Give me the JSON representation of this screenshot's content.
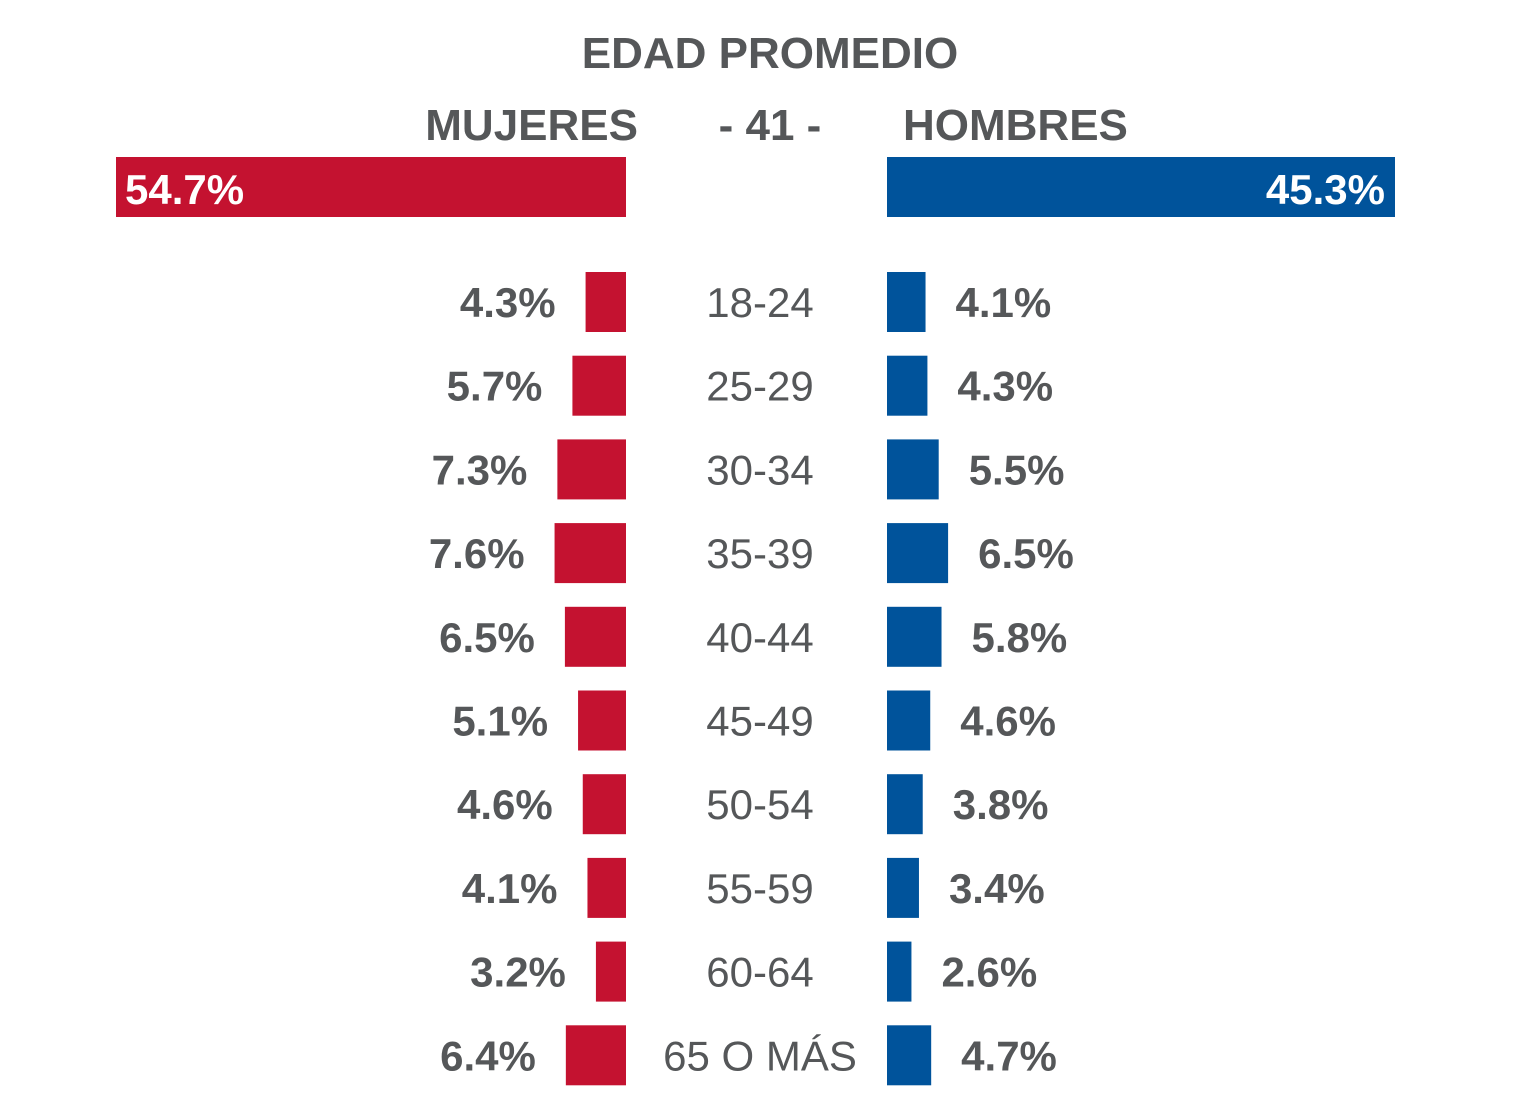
{
  "chart_data": {
    "type": "bar",
    "orientation": "horizontal-diverging",
    "title": "EDAD PROMEDIO",
    "average_label": "- 41 -",
    "totals": [
      {
        "name": "MUJERES",
        "value": 54.7,
        "label": "54.7%"
      },
      {
        "name": "HOMBRES",
        "value": 45.3,
        "label": "45.3%"
      }
    ],
    "categories": [
      "18-24",
      "25-29",
      "30-34",
      "35-39",
      "40-44",
      "45-49",
      "50-54",
      "55-59",
      "60-64",
      "65 O MÁS"
    ],
    "series": [
      {
        "name": "MUJERES",
        "side": "left",
        "values": [
          4.3,
          5.7,
          7.3,
          7.6,
          6.5,
          5.1,
          4.6,
          4.1,
          3.2,
          6.4
        ],
        "labels": [
          "4.3%",
          "5.7%",
          "7.3%",
          "7.6%",
          "6.5%",
          "5.1%",
          "4.6%",
          "4.1%",
          "3.2%",
          "6.4%"
        ]
      },
      {
        "name": "HOMBRES",
        "side": "right",
        "values": [
          4.1,
          4.3,
          5.5,
          6.5,
          5.8,
          4.6,
          3.8,
          3.4,
          2.6,
          4.7
        ],
        "labels": [
          "4.1%",
          "4.3%",
          "5.5%",
          "6.5%",
          "5.8%",
          "4.6%",
          "3.8%",
          "3.4%",
          "2.6%",
          "4.7%"
        ]
      }
    ],
    "legend": "none",
    "grid": false
  },
  "colors": {
    "mujeres": "#c41230",
    "hombres": "#00539b",
    "text": "#555759",
    "total_text": "#ffffff"
  }
}
